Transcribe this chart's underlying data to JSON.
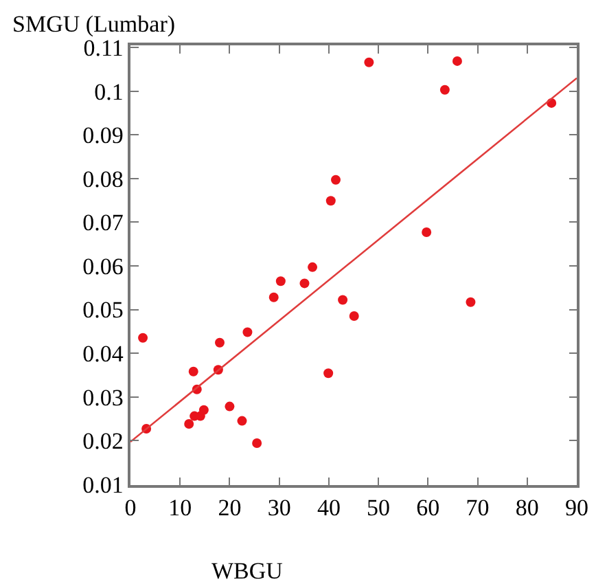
{
  "chart_data": {
    "type": "scatter",
    "xlabel": "WBGU",
    "ylabel": "SMGU (Lumbar)",
    "xlim": [
      0,
      90
    ],
    "ylim": [
      0.0098,
      0.1105
    ],
    "xticks": [
      0,
      10,
      20,
      30,
      40,
      50,
      60,
      70,
      80,
      90
    ],
    "yticks": [
      0.01,
      0.02,
      0.03,
      0.04,
      0.05,
      0.06,
      0.07,
      0.08,
      0.09,
      0.1,
      0.11
    ],
    "grid": false,
    "marker": "circle",
    "series": [
      {
        "type": "scatter",
        "color": "#e8141c",
        "x": [
          48.1,
          65.9,
          63.4,
          84.9,
          41.4,
          40.4,
          59.7,
          2.5,
          3.2,
          11.8,
          12.7,
          13.4,
          12.9,
          14.1,
          14.8,
          17.7,
          18.0,
          20.0,
          22.5,
          23.6,
          25.5,
          28.9,
          30.3,
          35.1,
          36.7,
          39.9,
          42.8,
          45.1,
          68.6
        ],
        "values": [
          0.1066,
          0.1069,
          0.1003,
          0.0973,
          0.0797,
          0.0749,
          0.0677,
          0.0435,
          0.0227,
          0.0238,
          0.0358,
          0.0317,
          0.0256,
          0.0256,
          0.027,
          0.0362,
          0.0424,
          0.0278,
          0.0245,
          0.0448,
          0.0194,
          0.0528,
          0.0565,
          0.056,
          0.0597,
          0.0354,
          0.0522,
          0.0485,
          0.0517
        ]
      },
      {
        "type": "line",
        "color": "#e03c3c",
        "line_style": "solid",
        "marker": "none",
        "x": [
          0,
          90
        ],
        "values": [
          0.0197,
          0.103
        ]
      }
    ]
  }
}
